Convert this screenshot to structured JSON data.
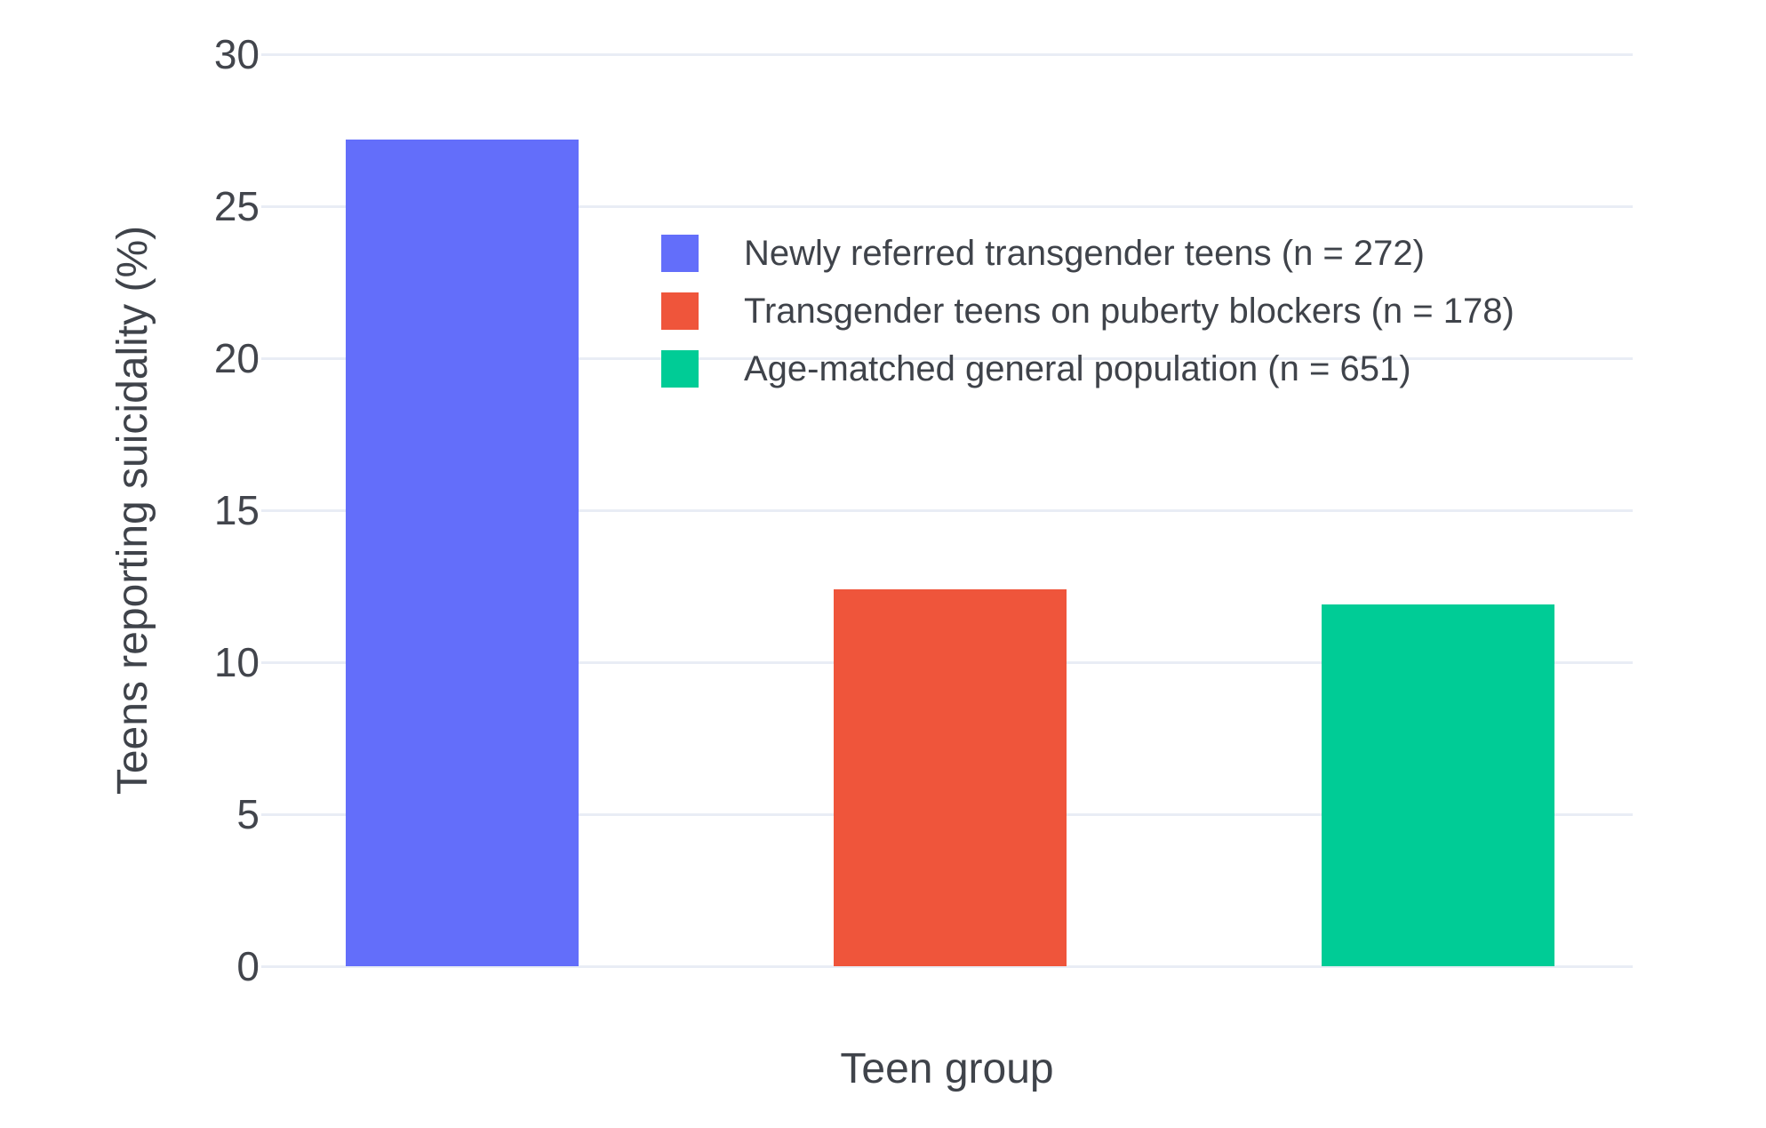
{
  "chart_data": {
    "type": "bar",
    "title": "",
    "xlabel": "Teen group",
    "ylabel": "Teens reporting suicidality (%)",
    "categories": [
      "Newly referred transgender teens",
      "Transgender teens on puberty blockers",
      "Age-matched general population"
    ],
    "series": [
      {
        "name": "Newly referred transgender teens (n = 272)",
        "value": 27.2,
        "color": "#636EFA"
      },
      {
        "name": "Transgender teens on puberty blockers (n = 178)",
        "value": 12.4,
        "color": "#EF553B"
      },
      {
        "name": "Age-matched general population (n = 651)",
        "value": 11.9,
        "color": "#00CC96"
      }
    ],
    "ylim": [
      0,
      30
    ],
    "yticks": [
      0,
      5,
      10,
      15,
      20,
      25,
      30
    ],
    "grid": true,
    "legend_position": "inside plot, upper center-left, vertical list",
    "colors": {
      "background": "#FFFFFF",
      "grid": "#E9EDF5",
      "tick_text": "#42454c",
      "axis_title_text": "#3f434a"
    }
  }
}
